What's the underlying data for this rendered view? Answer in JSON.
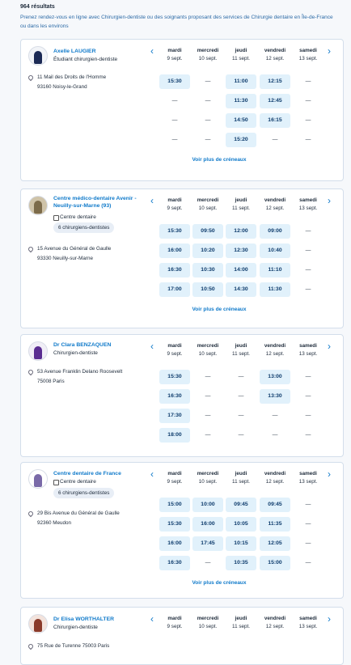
{
  "header": {
    "count": "964 résultats",
    "description": "Prenez rendez-vous en ligne avec Chirurgien-dentiste ou des soignants proposant des services de Chirurgie dentaire en Île-de-France ou dans les environs"
  },
  "cards": [
    {
      "name": "Axelle LAUGIER",
      "specialty": "Étudiant chirurgien-dentiste",
      "address": [
        "11 Mail des Droits de l'Homme",
        "93160 Noisy-le-Grand"
      ],
      "days": [
        {
          "name": "mardi",
          "date": "9 sept."
        },
        {
          "name": "mercredi",
          "date": "10 sept."
        },
        {
          "name": "jeudi",
          "date": "11 sept."
        },
        {
          "name": "vendredi",
          "date": "12 sept."
        },
        {
          "name": "samedi",
          "date": "13 sept."
        }
      ],
      "slots": [
        [
          "15:30",
          "—",
          "11:00",
          "12:15",
          "—"
        ],
        [
          "—",
          "—",
          "11:30",
          "12:45",
          "—"
        ],
        [
          "—",
          "—",
          "14:50",
          "16:15",
          "—"
        ],
        [
          "—",
          "—",
          "15:20",
          "—",
          "—"
        ]
      ],
      "more": "Voir plus de créneaux"
    },
    {
      "name": "Centre médico-dentaire Avenir - Neuilly-sur-Marne (93)",
      "specialty": "Centre dentaire",
      "badge": "6 chirurgiens-dentistes",
      "address": [
        "15 Avenue du Général de Gaulle",
        "93330 Neuilly-sur-Marne"
      ],
      "days": [
        {
          "name": "mardi",
          "date": "9 sept."
        },
        {
          "name": "mercredi",
          "date": "10 sept."
        },
        {
          "name": "jeudi",
          "date": "11 sept."
        },
        {
          "name": "vendredi",
          "date": "12 sept."
        },
        {
          "name": "samedi",
          "date": "13 sept."
        }
      ],
      "slots": [
        [
          "15:30",
          "09:50",
          "12:00",
          "09:00",
          "—"
        ],
        [
          "16:00",
          "10:20",
          "12:30",
          "10:40",
          "—"
        ],
        [
          "16:30",
          "10:30",
          "14:00",
          "11:10",
          "—"
        ],
        [
          "17:00",
          "10:50",
          "14:30",
          "11:30",
          "—"
        ]
      ],
      "more": "Voir plus de créneaux"
    },
    {
      "name": "Dr Clara BENZAQUEN",
      "specialty": "Chirurgien-dentiste",
      "address": [
        "53 Avenue Franklin Delano Roosevelt",
        "75008 Paris"
      ],
      "days": [
        {
          "name": "mardi",
          "date": "9 sept."
        },
        {
          "name": "mercredi",
          "date": "10 sept."
        },
        {
          "name": "jeudi",
          "date": "11 sept."
        },
        {
          "name": "vendredi",
          "date": "12 sept."
        },
        {
          "name": "samedi",
          "date": "13 sept."
        }
      ],
      "slots": [
        [
          "15:30",
          "—",
          "—",
          "13:00",
          "—"
        ],
        [
          "16:30",
          "—",
          "—",
          "13:30",
          "—"
        ],
        [
          "17:30",
          "—",
          "—",
          "—",
          "—"
        ],
        [
          "18:00",
          "—",
          "—",
          "—",
          "—"
        ]
      ]
    },
    {
      "name": "Centre dentaire de France",
      "specialty": "Centre dentaire",
      "badge": "6 chirurgiens-dentistes",
      "address": [
        "29 Bis Avenue du Général de Gaulle",
        "92360 Meudon"
      ],
      "days": [
        {
          "name": "mardi",
          "date": "9 sept."
        },
        {
          "name": "mercredi",
          "date": "10 sept."
        },
        {
          "name": "jeudi",
          "date": "11 sept."
        },
        {
          "name": "vendredi",
          "date": "12 sept."
        },
        {
          "name": "samedi",
          "date": "13 sept."
        }
      ],
      "slots": [
        [
          "15:00",
          "10:00",
          "09:45",
          "09:45",
          "—"
        ],
        [
          "15:30",
          "16:00",
          "10:05",
          "11:35",
          "—"
        ],
        [
          "16:00",
          "17:45",
          "10:15",
          "12:05",
          "—"
        ],
        [
          "16:30",
          "—",
          "10:35",
          "15:00",
          "—"
        ]
      ],
      "more": "Voir plus de créneaux"
    },
    {
      "name": "Dr Elisa WORTHALTER",
      "specialty": "Chirurgien-dentiste",
      "address": [
        "75 Rue de Turenne 75003 Paris"
      ],
      "days": [
        {
          "name": "mardi",
          "date": "9 sept."
        },
        {
          "name": "mercredi",
          "date": "10 sept."
        },
        {
          "name": "jeudi",
          "date": "11 sept."
        },
        {
          "name": "vendredi",
          "date": "12 sept."
        },
        {
          "name": "samedi",
          "date": "13 sept."
        }
      ],
      "slots": []
    }
  ]
}
